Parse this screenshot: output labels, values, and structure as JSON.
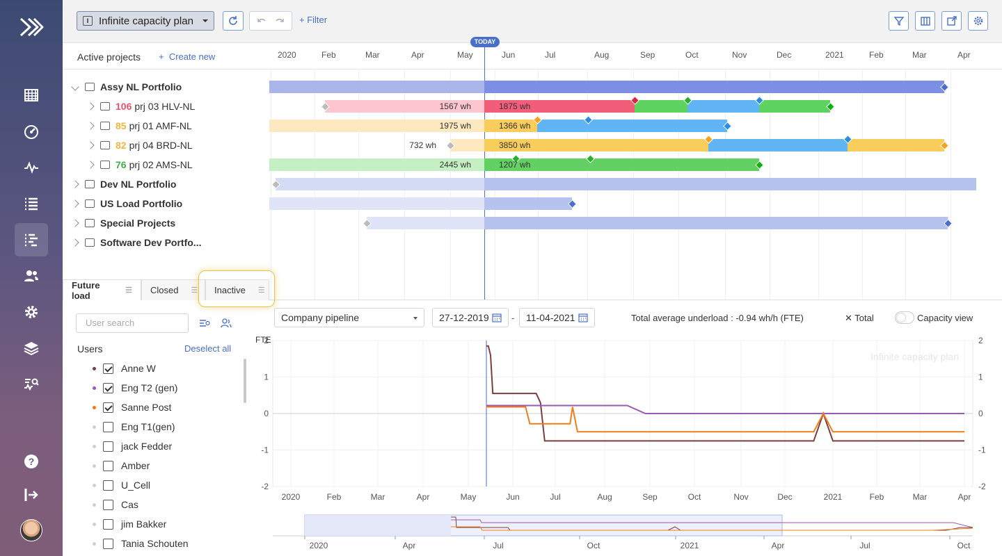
{
  "sidebar": {
    "items": [
      "calendar-icon",
      "dashboard-icon",
      "activity-icon",
      "list-icon",
      "gantt-icon",
      "users-icon",
      "settings-icon",
      "layers-icon",
      "analytics-icon",
      "help-icon",
      "logout-icon"
    ],
    "active": "gantt-icon"
  },
  "topbar": {
    "plan_name": "Infinite capacity plan",
    "filter_label": "Filter"
  },
  "gantt": {
    "title": "Active projects",
    "create_new": "Create new",
    "today_label": "TODAY",
    "months": [
      "2020",
      "Feb",
      "Mar",
      "Apr",
      "May",
      "Jun",
      "Jul",
      "Aug",
      "Sep",
      "Oct",
      "Nov",
      "Dec",
      "2021",
      "Feb",
      "Mar",
      "Apr"
    ],
    "rows": [
      {
        "name": "Assy NL Portfolio",
        "type": "portfolio",
        "expanded": true
      },
      {
        "num": "106",
        "num_color": "#e8506a",
        "name": "prj 03 HLV-NL",
        "left_text": "1567 wh",
        "right_text": "1875 wh"
      },
      {
        "num": "85",
        "num_color": "#f2b63c",
        "name": "prj 01 AMF-NL",
        "left_text": "1975 wh",
        "right_text": "1366 wh"
      },
      {
        "num": "82",
        "num_color": "#f2b63c",
        "name": "prj 04 BRD-NL",
        "left_text": "732 wh",
        "right_text": "3850 wh"
      },
      {
        "num": "76",
        "num_color": "#3cb043",
        "name": "prj 02 AMS-NL",
        "left_text": "2445 wh",
        "right_text": "1207 wh"
      },
      {
        "name": "Dev NL Portfolio",
        "type": "portfolio"
      },
      {
        "name": "US Load Portfolio",
        "type": "portfolio"
      },
      {
        "name": "Special Projects",
        "type": "portfolio"
      },
      {
        "name": "Software Dev Portfo...",
        "type": "portfolio"
      }
    ]
  },
  "tabs": [
    {
      "label": "Future load",
      "selected": true
    },
    {
      "label": "Closed"
    },
    {
      "label": "Inactive"
    }
  ],
  "users_panel": {
    "search_placeholder": "User search",
    "users_label": "Users",
    "deselect_all": "Deselect all",
    "users": [
      {
        "name": "Anne W",
        "checked": true,
        "color": "#7b3f3f"
      },
      {
        "name": "Eng T2 (gen)",
        "checked": true,
        "color": "#9b59b6"
      },
      {
        "name": "Sanne Post",
        "checked": true,
        "color": "#f07d1a"
      },
      {
        "name": "Eng T1(gen)",
        "checked": false,
        "color": "#d0d0d0"
      },
      {
        "name": "jack Fedder",
        "checked": false,
        "color": "#d0d0d0"
      },
      {
        "name": "Amber",
        "checked": false,
        "color": "#d0d0d0"
      },
      {
        "name": "U_Cell",
        "checked": false,
        "color": "#d0d0d0"
      },
      {
        "name": "Cas",
        "checked": false,
        "color": "#d0d0d0"
      },
      {
        "name": "jim Bakker",
        "checked": false,
        "color": "#d0d0d0"
      },
      {
        "name": "Tania Schouten",
        "checked": false,
        "color": "#d0d0d0"
      }
    ]
  },
  "load_controls": {
    "pipeline": "Company pipeline",
    "date_from": "27-12-2019",
    "date_to": "11-04-2021",
    "date_sep": "-",
    "summary": "Total average underload : -0.94 wh/h (FTE)",
    "total_label": "Total",
    "capacity_view": "Capacity view"
  },
  "chart_data": {
    "type": "line",
    "ylabel": "FTE",
    "watermark": "Infinite capacity plan",
    "ylim": [
      -2,
      2
    ],
    "yticks": [
      2,
      1,
      0,
      -1,
      -2
    ],
    "xticks": [
      "2020",
      "Feb",
      "Mar",
      "Apr",
      "May",
      "Jun",
      "Jul",
      "Aug",
      "Sep",
      "Oct",
      "Nov",
      "Dec",
      "2021",
      "Feb",
      "Mar",
      "Apr"
    ],
    "x_domain": [
      0,
      15.3
    ],
    "series": [
      {
        "name": "Anne W",
        "color": "#7b3f3f",
        "points": [
          [
            4.4,
            1.85
          ],
          [
            4.45,
            1.85
          ],
          [
            4.5,
            1.6
          ],
          [
            4.55,
            0.55
          ],
          [
            5.55,
            0.55
          ],
          [
            5.65,
            0.3
          ],
          [
            5.75,
            -0.75
          ],
          [
            11.6,
            -0.75
          ],
          [
            11.8,
            0
          ],
          [
            12.0,
            -0.75
          ],
          [
            15.3,
            -0.75
          ]
        ]
      },
      {
        "name": "Eng T2 (gen)",
        "color": "#9b59b6",
        "points": [
          [
            4.4,
            0.22
          ],
          [
            7.5,
            0.22
          ],
          [
            7.9,
            0
          ],
          [
            15.3,
            0
          ]
        ]
      },
      {
        "name": "Sanne Post",
        "color": "#f07d1a",
        "points": [
          [
            4.4,
            0.18
          ],
          [
            5.3,
            0.18
          ],
          [
            5.4,
            -0.28
          ],
          [
            6.3,
            -0.28
          ],
          [
            6.35,
            0.18
          ],
          [
            6.45,
            -0.5
          ],
          [
            11.6,
            -0.5
          ],
          [
            11.8,
            0
          ],
          [
            12.0,
            -0.5
          ],
          [
            15.3,
            -0.5
          ]
        ]
      }
    ]
  },
  "overview": {
    "ticks": [
      "2020",
      "Apr",
      "Jul",
      "Oct",
      "2021",
      "Apr",
      "Jul",
      "Oct"
    ]
  }
}
